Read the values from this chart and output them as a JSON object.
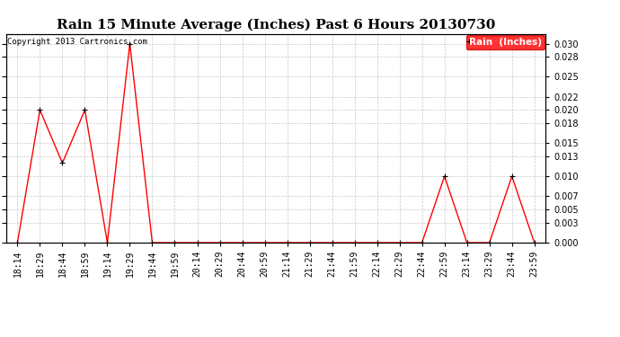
{
  "title": "Rain 15 Minute Average (Inches) Past 6 Hours 20130730",
  "copyright_text": "Copyright 2013 Cartronics.com",
  "legend_label": "Rain  (Inches)",
  "x_labels": [
    "18:14",
    "18:29",
    "18:44",
    "18:59",
    "19:14",
    "19:29",
    "19:44",
    "19:59",
    "20:14",
    "20:29",
    "20:44",
    "20:59",
    "21:14",
    "21:29",
    "21:44",
    "21:59",
    "22:14",
    "22:29",
    "22:44",
    "22:59",
    "23:14",
    "23:29",
    "23:44",
    "23:59"
  ],
  "y_values": [
    0.0,
    0.02,
    0.012,
    0.02,
    0.0,
    0.03,
    0.0,
    0.0,
    0.0,
    0.0,
    0.0,
    0.0,
    0.0,
    0.0,
    0.0,
    0.0,
    0.0,
    0.0,
    0.0,
    0.01,
    0.0,
    0.0,
    0.01,
    0.0
  ],
  "ylim": [
    0.0,
    0.0315
  ],
  "yticks": [
    0.0,
    0.003,
    0.005,
    0.007,
    0.01,
    0.013,
    0.015,
    0.018,
    0.02,
    0.022,
    0.025,
    0.028,
    0.03
  ],
  "line_color": "#FF0000",
  "marker_color": "#000000",
  "background_color": "#FFFFFF",
  "grid_color": "#BBBBBB",
  "title_fontsize": 11,
  "axis_fontsize": 7,
  "legend_bg_color": "#FF0000",
  "legend_text_color": "#FFFFFF"
}
